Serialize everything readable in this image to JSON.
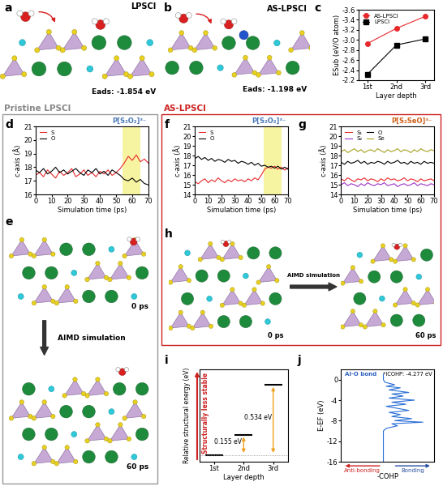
{
  "chart_data": [
    {
      "label": "c",
      "type": "line",
      "xlabel": "Layer depth",
      "ylabel": "ESub (eV/O atom)",
      "categories": [
        "1st",
        "2nd",
        "3rd"
      ],
      "series": [
        {
          "name": "AS-LPSCl",
          "color": "#e8282b",
          "marker": "circle",
          "line_style": "solid",
          "values": [
            -2.93,
            -3.23,
            -3.47
          ]
        },
        {
          "name": "LPSCl",
          "color": "#000000",
          "marker": "square",
          "line_style": "solid",
          "values": [
            -2.32,
            -2.9,
            -3.02
          ]
        }
      ],
      "ylim": [
        -2.2,
        -3.6
      ],
      "yticks": [
        -3.6,
        -3.4,
        -3.2,
        -3.0,
        -2.8,
        -2.6,
        -2.4,
        -2.2
      ],
      "legend": "upper left"
    },
    {
      "label": "d",
      "type": "line",
      "xlabel": "Simulation time (ps)",
      "ylabel": "c-axis (Å)",
      "annotation": "P[S₂O₂]³⁻",
      "highlight_x": [
        54,
        65
      ],
      "x": [
        0,
        2.5,
        5,
        7.5,
        10,
        12.5,
        15,
        17.5,
        20,
        22.5,
        25,
        27.5,
        30,
        32.5,
        35,
        37.5,
        40,
        42.5,
        45,
        47.5,
        50,
        52.5,
        55,
        57.5,
        60,
        62.5,
        65,
        67.5,
        70
      ],
      "series": [
        {
          "name": "S",
          "color": "#e8282b",
          "values": [
            17.4,
            17.6,
            17.3,
            17.8,
            17.5,
            17.2,
            17.7,
            17.4,
            17.6,
            17.9,
            17.3,
            17.5,
            17.8,
            17.4,
            17.6,
            17.3,
            17.7,
            17.5,
            17.8,
            17.4,
            17.6,
            17.9,
            18.3,
            18.8,
            18.5,
            18.9,
            18.4,
            18.6,
            18.3
          ]
        },
        {
          "name": "O",
          "color": "#000000",
          "values": [
            17.8,
            17.6,
            17.9,
            17.5,
            17.7,
            18.0,
            17.6,
            17.8,
            17.5,
            17.7,
            17.9,
            17.6,
            17.4,
            17.8,
            17.6,
            17.9,
            17.5,
            17.7,
            17.4,
            17.8,
            17.6,
            17.4,
            17.1,
            17.0,
            17.2,
            16.9,
            17.1,
            16.8,
            16.7
          ]
        }
      ],
      "xlim": [
        0,
        70
      ],
      "xticks": [
        0,
        10,
        20,
        30,
        40,
        50,
        60,
        70
      ],
      "ylim": [
        16,
        21
      ],
      "yticks": [
        16,
        17,
        18,
        19,
        20,
        21
      ],
      "legend": "upper left"
    },
    {
      "label": "f",
      "type": "line",
      "xlabel": "Simulation time (ps)",
      "ylabel": "c-axis (Å)",
      "annotation": "P[S₂O₂]³⁻",
      "highlight_x": [
        52,
        65
      ],
      "x": [
        0,
        2.5,
        5,
        7.5,
        10,
        12.5,
        15,
        17.5,
        20,
        22.5,
        25,
        27.5,
        30,
        32.5,
        35,
        37.5,
        40,
        42.5,
        45,
        47.5,
        50,
        52.5,
        55,
        57.5,
        60,
        62.5,
        65,
        67.5,
        70
      ],
      "series": [
        {
          "name": "S",
          "color": "#e8282b",
          "values": [
            15.3,
            15.1,
            15.4,
            15.6,
            15.2,
            15.5,
            15.3,
            15.7,
            15.4,
            15.2,
            15.5,
            15.3,
            15.6,
            15.4,
            15.5,
            15.3,
            15.6,
            15.4,
            15.7,
            15.5,
            16.0,
            16.6,
            16.8,
            16.7,
            16.9,
            16.6,
            16.8,
            16.5,
            16.7
          ]
        },
        {
          "name": "O",
          "color": "#000000",
          "values": [
            17.7,
            17.9,
            17.6,
            17.8,
            17.5,
            17.7,
            17.4,
            17.6,
            17.5,
            17.3,
            17.6,
            17.4,
            17.5,
            17.2,
            17.4,
            17.3,
            17.1,
            17.3,
            17.0,
            17.2,
            16.9,
            17.0,
            16.8,
            16.9,
            16.7,
            16.9,
            16.6,
            16.8,
            16.6
          ]
        }
      ],
      "xlim": [
        0,
        70
      ],
      "xticks": [
        0,
        10,
        20,
        30,
        40,
        50,
        60,
        70
      ],
      "ylim": [
        14,
        21
      ],
      "yticks": [
        14,
        15,
        16,
        17,
        18,
        19,
        20,
        21
      ],
      "legend": "upper left"
    },
    {
      "label": "g",
      "type": "line",
      "xlabel": "Simulation time (ps)",
      "ylabel": "c-axis (Å)",
      "annotation": "P[S₂SeO]³⁻",
      "x": [
        0,
        2.5,
        5,
        7.5,
        10,
        12.5,
        15,
        17.5,
        20,
        22.5,
        25,
        27.5,
        30,
        32.5,
        35,
        37.5,
        40,
        42.5,
        45,
        47.5,
        50,
        52.5,
        55,
        57.5,
        60,
        62.5,
        65,
        67.5,
        70
      ],
      "series": [
        {
          "name": "S₁",
          "color": "#e8282b",
          "values": [
            15.6,
            15.4,
            15.7,
            15.5,
            15.3,
            15.6,
            15.5,
            15.7,
            15.4,
            15.6,
            15.5,
            15.3,
            15.6,
            15.4,
            15.7,
            15.5,
            15.6,
            15.4,
            15.5,
            15.7,
            15.4,
            15.6,
            15.5,
            15.3,
            15.6,
            15.4,
            15.5,
            15.6,
            15.4
          ]
        },
        {
          "name": "S₂",
          "color": "#9b30c8",
          "values": [
            15.0,
            15.2,
            14.9,
            15.1,
            15.0,
            14.8,
            15.1,
            14.9,
            15.2,
            15.0,
            14.9,
            15.1,
            15.0,
            15.2,
            14.9,
            15.0,
            15.1,
            14.8,
            15.0,
            15.1,
            14.9,
            15.0,
            15.2,
            14.9,
            15.1,
            15.0,
            14.9,
            15.1,
            15.0
          ]
        },
        {
          "name": "O",
          "color": "#000000",
          "values": [
            17.3,
            17.1,
            17.4,
            17.2,
            17.3,
            17.5,
            17.2,
            17.4,
            17.1,
            17.3,
            17.2,
            17.4,
            17.3,
            17.1,
            17.4,
            17.2,
            17.3,
            17.5,
            17.2,
            17.3,
            17.1,
            17.4,
            17.2,
            17.3,
            17.1,
            17.4,
            17.2,
            17.3,
            17.2
          ]
        },
        {
          "name": "Se",
          "color": "#a8a020",
          "values": [
            18.4,
            18.6,
            18.3,
            18.5,
            18.7,
            18.4,
            18.6,
            18.3,
            18.5,
            18.6,
            18.4,
            18.7,
            18.5,
            18.3,
            18.6,
            18.4,
            18.5,
            18.7,
            18.4,
            18.6,
            18.5,
            18.3,
            18.6,
            18.4,
            18.7,
            18.5,
            18.4,
            18.6,
            18.5
          ]
        }
      ],
      "xlim": [
        0,
        70
      ],
      "xticks": [
        0,
        10,
        20,
        30,
        40,
        50,
        60,
        70
      ],
      "ylim": [
        14,
        21
      ],
      "yticks": [
        14,
        15,
        16,
        17,
        18,
        19,
        20,
        21
      ],
      "legend": "upper left"
    },
    {
      "label": "i",
      "type": "level",
      "xlabel": "Layer depth",
      "ylabel": "Relative structural energy (eV)",
      "annotation": "Structurally less stable",
      "categories": [
        "1st",
        "2nd",
        "3rd"
      ],
      "values": [
        0,
        0.155,
        0.534
      ],
      "value_labels": [
        null,
        "0.155 eV",
        "0.534 eV"
      ],
      "data_labels": true,
      "color": "#000000",
      "ylim": [
        -0.05,
        0.65
      ],
      "tick_labels": "x"
    },
    {
      "label": "j",
      "type": "line",
      "orientation": "horizontal",
      "xlabel": "-COHP",
      "ylabel": "E-EF (eV)",
      "annotations": [
        "Al-O bond",
        "*ICOHP: -4.277 eV",
        "Anti-bonding",
        "Bonding"
      ],
      "color": "#2a6fd6",
      "y": [
        1,
        0.5,
        0,
        -0.5,
        -1,
        -1.3,
        -1.6,
        -2,
        -2.5,
        -2.8,
        -3.2,
        -3.6,
        -4,
        -4.4,
        -4.8,
        -5.2,
        -5.6,
        -6,
        -6.4,
        -6.8,
        -7.2,
        -7.6,
        -8,
        -8.3,
        -8.6,
        -9,
        -9.5,
        -10,
        -11,
        -12,
        -13,
        -14,
        -15,
        -16
      ],
      "values": [
        0,
        0,
        0,
        0.05,
        0.4,
        0.1,
        0.6,
        0.2,
        0.9,
        0.3,
        0.7,
        0.2,
        1.1,
        0.3,
        0.8,
        0.1,
        0.5,
        0.9,
        0.2,
        0.6,
        0.3,
        1.0,
        0.4,
        1.4,
        0.3,
        0.5,
        0.1,
        0,
        0,
        0,
        0,
        0,
        0,
        0
      ],
      "xlim": [
        -1.5,
        1.8
      ],
      "ylim": [
        -16,
        2
      ],
      "yticks": [
        -16,
        -12,
        -8,
        -4,
        0
      ],
      "tick_labels": "y"
    }
  ],
  "panels": {
    "a": {
      "label": "a",
      "title": "LPSCl",
      "annotation": "Eads: -1.854 eV"
    },
    "b": {
      "label": "b",
      "title": "AS-LPSCl",
      "annotation": "Eads: -1.198 eV"
    },
    "e": {
      "label": "e",
      "times": [
        "0 ps",
        "60 ps"
      ],
      "arrow_text": "AIMD simulation"
    },
    "h": {
      "label": "h",
      "times": [
        "0 ps",
        "60 ps"
      ],
      "arrow_text": "AIMD simulation"
    }
  },
  "group_titles": [
    "Pristine LPSCl",
    "AS-LPSCl"
  ]
}
